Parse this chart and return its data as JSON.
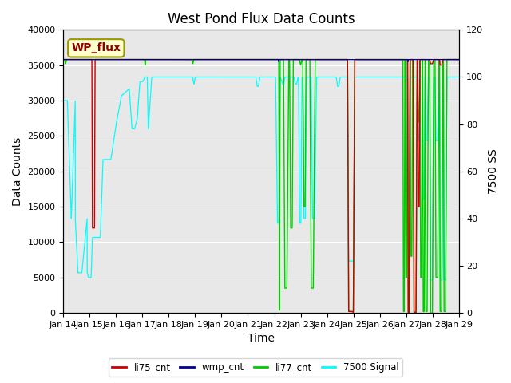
{
  "title": "West Pond Flux Data Counts",
  "xlabel": "Time",
  "ylabel_left": "Data Counts",
  "ylabel_right": "7500 SS",
  "legend_label": "WP_flux",
  "ylim_left": [
    0,
    40000
  ],
  "ylim_right": [
    0,
    120
  ],
  "left_yticks": [
    0,
    5000,
    10000,
    15000,
    20000,
    25000,
    30000,
    35000,
    40000
  ],
  "right_yticks": [
    0,
    20,
    40,
    60,
    80,
    100,
    120
  ],
  "xtick_days": [
    14,
    15,
    16,
    17,
    18,
    19,
    20,
    21,
    22,
    23,
    24,
    25,
    26,
    27,
    28,
    29
  ],
  "background_color": "#e8e8e8",
  "title_fontsize": 12,
  "axis_label_fontsize": 10,
  "tick_fontsize": 8,
  "legend_box_facecolor": "#ffffcc",
  "legend_box_edgecolor": "#999900",
  "li75_color": "#cc0000",
  "wmp_color": "#000099",
  "li77_color": "#00cc00",
  "signal7500_color": "cyan"
}
